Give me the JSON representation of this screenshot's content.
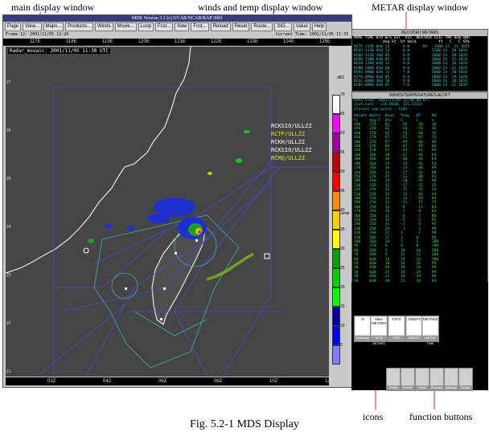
{
  "callouts": {
    "main_display": "main display window",
    "winds_temp": "winds and temp display window",
    "metar_display": "METAR display window",
    "icons": "icons",
    "function_buttons": "function buttons"
  },
  "caption": "Fig. 5.2-1 MDS Display",
  "main_window": {
    "title": "MDS Version 3.1 (c) UCAR/NCAR/RAP 2001",
    "toolbar": [
      "Page",
      "View...",
      "Maps...",
      "Products...",
      "Winds",
      "Movie...",
      "Loop",
      "Fcst...",
      "Now",
      "Fcst...",
      "Reload",
      "Reset",
      "Route...",
      "SIG...",
      "Value",
      "Help"
    ],
    "frame_label": "Frame 12: 2001/11/05 12:20",
    "current_time": "Current Time: 2001/11/05 11:33",
    "radar_label": "Radar_mosaic: 2001/11/05 11:30 UTC",
    "longitudes": [
      "117E",
      "118E",
      "119E",
      "120E",
      "121E",
      "122E",
      "123E",
      "124E",
      "125E"
    ],
    "latitudes": [
      "27",
      "26",
      "25",
      "24",
      "23",
      "22",
      "21"
    ],
    "times": [
      "02Z",
      "04Z",
      "06Z",
      "08Z",
      "10Z",
      "12Z"
    ],
    "color_scale": [
      "70",
      "65",
      "60",
      "55",
      "50",
      "45",
      "40",
      "35",
      "30",
      "25",
      "20",
      "15",
      "10",
      "5"
    ],
    "color_unit_top": "dBZ",
    "color_unit_mid": "Comp",
    "station_labels": [
      "RCKSIO/ULLZZ",
      "RCTP/ULLZZ",
      "RCKH/ULLZZ",
      "RCKSIO/ULLZZ",
      "RCMQ/ULLZZ"
    ]
  },
  "metar_window": {
    "title": "DECODED METARS",
    "lines": [
      "NAME TIME W/D W/S GST  VIS  WEATHER CEIL TMP DEW QNH",
      "             deg kt  kt km/m          ft   C   C hPa",
      "RCTP 1146 040 13      8.0     -RA   1600 23  21 1019",
      "RCSS 1130 050 13      8.0          1200 23  20 1019",
      "RCKH 1130 360 05      9.0          2600 23  20 1019",
      "RCMQ 1100 030 05      9.0          3000 23  21 1019",
      "RCFN 1100 040 11      9.0          3000 24  20 1019",
      "RCNN 1000 030 08      9.0          2800 23  21 1019",
      "RCKU 0900 030 11      7.0          3000 23  20 1019",
      "RCYU 0900 030 05      9.0          3000 23  19 1020",
      "RCQC 0900 360 10      9.0          3000 23  20 1019",
      "RCBS 0900 030 05      7.0          3000 23  21 1019"
    ]
  },
  "winds_window": {
    "title": "WINDS/TEMPERATURES ALOFT",
    "header_lines": [
      "Data time: 2001/11/05 12:00:00 UTC",
      "(Lat,Lon) : (25.0810, 121.2333)",
      "Closest sea point : 1105"
    ],
    "columns": [
      "Height",
      "Wdirn",
      "Wspd",
      "Temp",
      "DP",
      "RH"
    ],
    "units": [
      "FL",
      "deg T",
      "kts",
      "C",
      "C",
      "%"
    ],
    "rows": [
      [
        "490",
        "270",
        "63",
        "-56",
        "-70",
        "16"
      ],
      [
        "470",
        "270",
        "62",
        "-56",
        "-70",
        "16"
      ],
      [
        "450",
        "270",
        "62",
        "-53",
        "-68",
        "15"
      ],
      [
        "410",
        "270",
        "67",
        "-51",
        "-67",
        "15"
      ],
      [
        "380",
        "270",
        "67",
        "-49",
        "-60",
        "45"
      ],
      [
        "340",
        "270",
        "69",
        "-47",
        "-54",
        "66"
      ],
      [
        "320",
        "270",
        "51",
        "-43",
        "-41",
        "94"
      ],
      [
        "310",
        "260",
        "38",
        "-37",
        "-41",
        "64"
      ],
      [
        "300",
        "260",
        "36",
        "-36",
        "-41",
        "64"
      ],
      [
        "290",
        "260",
        "34",
        "-35",
        "-41",
        "54"
      ],
      [
        "270",
        "260",
        "34",
        "-33",
        "-40",
        "49"
      ],
      [
        "260",
        "260",
        "31",
        "-27",
        "-31",
        "68"
      ],
      [
        "250",
        "270",
        "31",
        "-22",
        "-30",
        "81"
      ],
      [
        "240",
        "260",
        "34",
        "-20",
        "-31",
        "40"
      ],
      [
        "230",
        "250",
        "32",
        "-17",
        "-32",
        "25"
      ],
      [
        "220",
        "250",
        "32",
        "-15",
        "-31",
        "24"
      ],
      [
        "210",
        "250",
        "32",
        "-13",
        "-26",
        "34"
      ],
      [
        "200",
        "250",
        "31",
        "-12",
        "-23",
        "44"
      ],
      [
        "190",
        "250",
        "31",
        "-11",
        "-17",
        "74"
      ],
      [
        "180",
        "250",
        "32",
        "-8",
        "-13",
        "64"
      ],
      [
        "170",
        "250",
        "32",
        "-7",
        "-9",
        "81"
      ],
      [
        "160",
        "250",
        "32",
        "-6",
        "-7",
        "86"
      ],
      [
        "150",
        "250",
        "32",
        "-5",
        "-5",
        "95"
      ],
      [
        "140",
        "250",
        "31",
        "-3",
        "-4",
        "97"
      ],
      [
        "130",
        "250",
        "29",
        "-1",
        "-2",
        "99"
      ],
      [
        "120",
        "260",
        "22",
        "1",
        "-1",
        "98"
      ],
      [
        "110",
        "260",
        "17",
        "3",
        "0",
        "96"
      ],
      [
        "100",
        "260",
        "14",
        "5",
        "5",
        "100"
      ],
      [
        "90",
        "270",
        "9",
        "8",
        "8",
        "100"
      ],
      [
        "80",
        "240",
        "5",
        "10",
        "10",
        "100"
      ],
      [
        "70",
        "030",
        "4",
        "12",
        "12",
        "100"
      ],
      [
        "60",
        "030",
        "13",
        "14",
        "14",
        "100"
      ],
      [
        "50",
        "030",
        "18",
        "16",
        "16",
        "99"
      ],
      [
        "40",
        "030",
        "20",
        "18",
        "18",
        "99"
      ],
      [
        "30",
        "030",
        "21",
        "19",
        "19",
        "99"
      ],
      [
        "20",
        "030",
        "21",
        "20",
        "19",
        "96"
      ],
      [
        "10",
        "030",
        "20",
        "21",
        "20",
        "94"
      ]
    ]
  },
  "desktop_icons": [
    {
      "face": "N",
      "cap": "Netscape"
    },
    {
      "face": "New METARS",
      "cap": "NEW METARS"
    },
    {
      "face": "TAFS",
      "cap": "TAFS"
    },
    {
      "face": "AIREPS",
      "cap": "AIREPS"
    },
    {
      "face": "METARS",
      "cap": "METAR TIME"
    }
  ],
  "function_buttons": [
    {
      "cap": "PrintBl"
    },
    {
      "cap": "PrintWe"
    },
    {
      "cap": "PrintS"
    },
    {
      "cap": "Sounding"
    },
    {
      "cap": "Netscape"
    },
    {
      "cap": "Restart MDS"
    }
  ]
}
